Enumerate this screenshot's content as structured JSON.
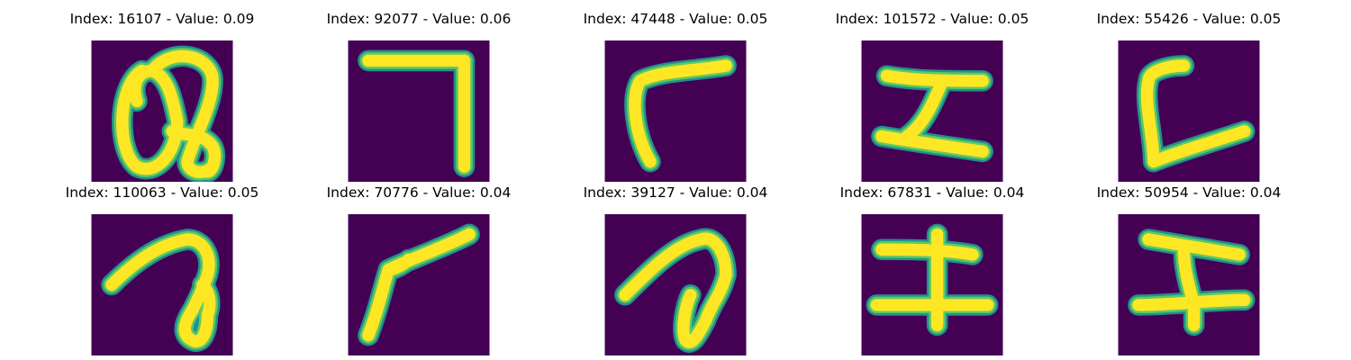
{
  "colors": {
    "background": "#440154",
    "edge": "#21918c",
    "mid": "#5ec962",
    "stroke": "#fde725"
  },
  "panels": [
    {
      "index": "16107",
      "value": "0.09",
      "title": "Index: 16107 - Value: 0.09"
    },
    {
      "index": "92077",
      "value": "0.06",
      "title": "Index: 92077 - Value: 0.06"
    },
    {
      "index": "47448",
      "value": "0.05",
      "title": "Index: 47448 - Value: 0.05"
    },
    {
      "index": "101572",
      "value": "0.05",
      "title": "Index: 101572 - Value: 0.05"
    },
    {
      "index": "55426",
      "value": "0.05",
      "title": "Index: 55426 - Value: 0.05"
    },
    {
      "index": "110063",
      "value": "0.05",
      "title": "Index: 110063 - Value: 0.05"
    },
    {
      "index": "70776",
      "value": "0.04",
      "title": "Index: 70776 - Value: 0.04"
    },
    {
      "index": "39127",
      "value": "0.04",
      "title": "Index: 39127 - Value: 0.04"
    },
    {
      "index": "67831",
      "value": "0.04",
      "title": "Index: 67831 - Value: 0.04"
    },
    {
      "index": "50954",
      "value": "0.04",
      "title": "Index: 50954 - Value: 0.04"
    }
  ]
}
